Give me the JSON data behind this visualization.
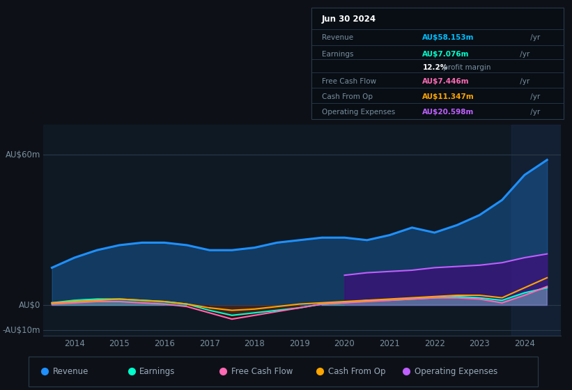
{
  "bg_color": "#0d1117",
  "plot_bg_color": "#0f1923",
  "title_date": "Jun 30 2024",
  "table": {
    "Revenue": {
      "value": "AU$58.153m",
      "color": "#00bfff"
    },
    "Earnings": {
      "value": "AU$7.076m",
      "color": "#00ffcc"
    },
    "profit_margin": "12.2% profit margin",
    "Free Cash Flow": {
      "value": "AU$7.446m",
      "color": "#ff69b4"
    },
    "Cash From Op": {
      "value": "AU$11.347m",
      "color": "#ffa500"
    },
    "Operating Expenses": {
      "value": "AU$20.598m",
      "color": "#bf5fff"
    }
  },
  "ylabel_top": "AU$60m",
  "ylabel_zero": "AU$0",
  "ylabel_neg": "-AU$10m",
  "ylim": [
    -12,
    72
  ],
  "legend": [
    {
      "label": "Revenue",
      "color": "#1e90ff"
    },
    {
      "label": "Earnings",
      "color": "#00ffcc"
    },
    {
      "label": "Free Cash Flow",
      "color": "#ff69b4"
    },
    {
      "label": "Cash From Op",
      "color": "#ffa500"
    },
    {
      "label": "Operating Expenses",
      "color": "#bf5fff"
    }
  ],
  "years": [
    2013.5,
    2014.0,
    2014.5,
    2015.0,
    2015.5,
    2016.0,
    2016.5,
    2017.0,
    2017.5,
    2018.0,
    2018.5,
    2019.0,
    2019.5,
    2020.0,
    2020.5,
    2021.0,
    2021.5,
    2022.0,
    2022.5,
    2023.0,
    2023.5,
    2024.0,
    2024.5
  ],
  "revenue": [
    15,
    19,
    22,
    24,
    25,
    25,
    24,
    22,
    22,
    23,
    25,
    26,
    27,
    27,
    26,
    28,
    31,
    29,
    32,
    36,
    42,
    52,
    58
  ],
  "earnings": [
    1.0,
    2.0,
    2.5,
    2.5,
    2.0,
    1.5,
    0.5,
    -2.0,
    -4.0,
    -3.0,
    -2.0,
    -1.0,
    0.5,
    1.0,
    2.0,
    2.0,
    2.5,
    3.0,
    3.5,
    3.0,
    2.0,
    5.0,
    7.0
  ],
  "fcf": [
    0.5,
    1.0,
    1.5,
    1.5,
    1.0,
    0.5,
    -0.5,
    -3.0,
    -5.5,
    -4.0,
    -2.5,
    -1.0,
    0.5,
    1.0,
    1.5,
    2.0,
    2.5,
    3.0,
    3.0,
    2.5,
    1.0,
    4.0,
    7.5
  ],
  "cashfromop": [
    1.0,
    1.5,
    2.0,
    2.5,
    2.0,
    1.5,
    0.5,
    -1.0,
    -2.0,
    -1.5,
    -0.5,
    0.5,
    1.0,
    1.5,
    2.0,
    2.5,
    3.0,
    3.5,
    4.0,
    4.0,
    3.0,
    7.0,
    11.0
  ],
  "opex_years": [
    2020.0,
    2020.5,
    2021.0,
    2021.5,
    2022.0,
    2022.5,
    2023.0,
    2023.5,
    2024.0,
    2024.5
  ],
  "opex": [
    12.0,
    13.0,
    13.5,
    14.0,
    15.0,
    15.5,
    16.0,
    17.0,
    19.0,
    20.5
  ],
  "xticks": [
    2014,
    2015,
    2016,
    2017,
    2018,
    2019,
    2020,
    2021,
    2022,
    2023,
    2024
  ],
  "xlim": [
    2013.3,
    2024.8
  ],
  "highlight_start": 2023.7
}
